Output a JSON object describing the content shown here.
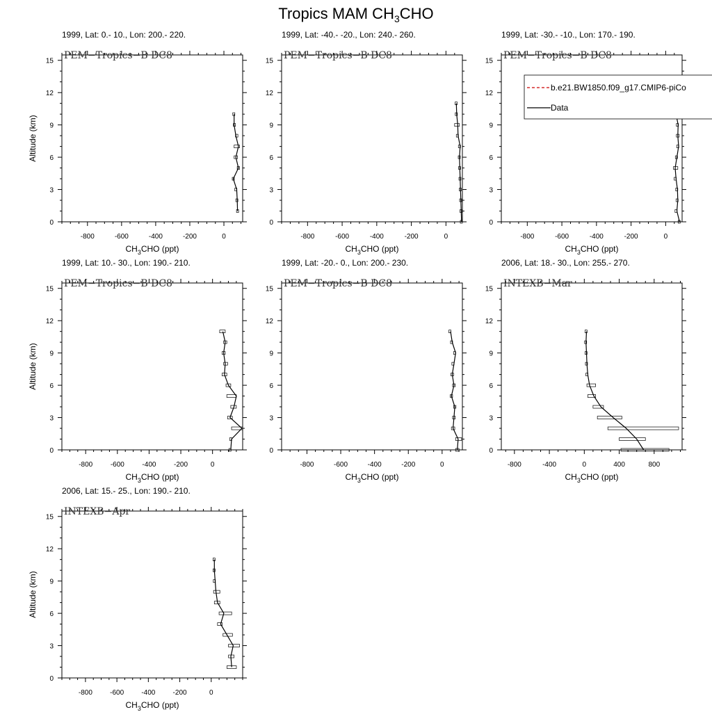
{
  "figure": {
    "title_main": "Tropics MAM CH",
    "title_sub": "3",
    "title_tail": "CHO"
  },
  "axis_labels": {
    "ylabel": "Altitude (km)",
    "xlabel_main": "CH",
    "xlabel_sub": "3",
    "xlabel_tail": "CHO (ppt)"
  },
  "legend": {
    "entries": [
      {
        "label": "b.e21.BW1850.f09_g17.CMIP6-piCo",
        "color": "#cc0000",
        "style": "dashed"
      },
      {
        "label": "Data",
        "color": "#000000",
        "style": "solid"
      }
    ]
  },
  "chart_data": [
    {
      "type": "line",
      "title": "1999, Lat: 0.- 10., Lon: 200.- 220.",
      "campaign": "PEM−Tropics−B DC8",
      "xlim": [
        -950,
        110
      ],
      "ylim": [
        0,
        15.5
      ],
      "xticks": [
        -800,
        -600,
        -400,
        -200,
        0
      ],
      "yticks": [
        0,
        3,
        6,
        9,
        12,
        15
      ],
      "y": [
        1,
        2,
        3,
        4,
        5,
        6,
        7,
        8,
        9,
        10
      ],
      "x": [
        80,
        78,
        75,
        55,
        85,
        70,
        85,
        70,
        60,
        60
      ],
      "x_lo": [
        80,
        76,
        70,
        55,
        78,
        60,
        60,
        68,
        55,
        58
      ],
      "x_hi": [
        82,
        80,
        80,
        57,
        92,
        80,
        92,
        82,
        68,
        62
      ]
    },
    {
      "type": "line",
      "title": "1999, Lat: -40.- -20., Lon: 240.- 260.",
      "campaign": "PEM−Tropics−B DC8",
      "xlim": [
        -950,
        95
      ],
      "ylim": [
        0,
        15.5
      ],
      "xticks": [
        -800,
        -600,
        -400,
        -200,
        0
      ],
      "yticks": [
        0,
        3,
        6,
        9,
        12,
        15
      ],
      "y": [
        0,
        1,
        2,
        3,
        4,
        5,
        6,
        7,
        8,
        9,
        10,
        11
      ],
      "x": [
        90,
        88,
        86,
        84,
        82,
        80,
        78,
        82,
        70,
        68,
        62,
        60
      ],
      "x_lo": [
        89,
        87,
        85,
        83,
        81,
        79,
        77,
        78,
        66,
        50,
        60,
        59
      ],
      "x_hi": [
        91,
        89,
        87,
        85,
        83,
        81,
        79,
        86,
        74,
        78,
        64,
        61
      ]
    },
    {
      "type": "line",
      "title": "1999, Lat: -30.- -10., Lon: 170.- 190.",
      "campaign": "PEM−Tropics−B DC8",
      "xlim": [
        -950,
        95
      ],
      "ylim": [
        0,
        15.5
      ],
      "xticks": [
        -800,
        -600,
        -400,
        -200,
        0
      ],
      "yticks": [
        0,
        3,
        6,
        9,
        12,
        15
      ],
      "y": [
        0,
        1,
        2,
        3,
        4,
        5,
        6,
        7,
        8,
        9,
        10,
        11
      ],
      "x": [
        80,
        65,
        70,
        68,
        60,
        55,
        65,
        75,
        70,
        72,
        60,
        55
      ],
      "x_lo": [
        78,
        60,
        66,
        64,
        55,
        45,
        62,
        70,
        62,
        68,
        55,
        53
      ],
      "x_hi": [
        82,
        70,
        74,
        72,
        65,
        70,
        68,
        80,
        78,
        76,
        65,
        57
      ]
    },
    {
      "type": "line",
      "title": "1999, Lat: 10.- 30., Lon: 190.- 210.",
      "campaign": "PEM−Tropics−B DC8",
      "xlim": [
        -950,
        190
      ],
      "ylim": [
        0,
        15.5
      ],
      "xticks": [
        -800,
        -600,
        -400,
        -200,
        0
      ],
      "yticks": [
        0,
        3,
        6,
        9,
        12,
        15
      ],
      "y": [
        0,
        1,
        2,
        3,
        4,
        5,
        6,
        7,
        8,
        9,
        10,
        11
      ],
      "x": [
        115,
        120,
        185,
        110,
        135,
        150,
        100,
        75,
        80,
        70,
        80,
        65
      ],
      "x_lo": [
        110,
        115,
        120,
        95,
        115,
        90,
        85,
        60,
        70,
        60,
        70,
        45
      ],
      "x_hi": [
        120,
        125,
        190,
        125,
        150,
        150,
        115,
        90,
        95,
        80,
        90,
        80
      ]
    },
    {
      "type": "line",
      "title": "1999, Lat: -20.- 0., Lon: 200.- 230.",
      "campaign": "PEM−Tropics−B DC8",
      "xlim": [
        -950,
        120
      ],
      "ylim": [
        0,
        15.5
      ],
      "xticks": [
        -800,
        -600,
        -400,
        -200,
        0
      ],
      "yticks": [
        0,
        3,
        6,
        9,
        12,
        15
      ],
      "y": [
        0,
        1,
        2,
        3,
        4,
        5,
        6,
        7,
        8,
        9,
        10,
        11
      ],
      "x": [
        90,
        95,
        65,
        70,
        75,
        55,
        70,
        60,
        70,
        80,
        60,
        50
      ],
      "x_lo": [
        80,
        80,
        55,
        62,
        68,
        48,
        62,
        52,
        64,
        74,
        56,
        46
      ],
      "x_hi": [
        100,
        115,
        75,
        78,
        82,
        62,
        78,
        68,
        76,
        86,
        64,
        54
      ]
    },
    {
      "type": "line",
      "title": "2006, Lat: 18.- 30., Lon: 255.- 270.",
      "campaign": "INTEXB−Mar",
      "xlim": [
        -950,
        1120
      ],
      "ylim": [
        0,
        15.5
      ],
      "xticks": [
        -800,
        -400,
        0,
        400,
        800
      ],
      "yticks": [
        0,
        3,
        6,
        9,
        12,
        15
      ],
      "y": [
        0,
        1,
        2,
        3,
        4,
        5,
        6,
        7,
        8,
        9,
        10,
        11
      ],
      "x": [
        680,
        600,
        480,
        330,
        190,
        110,
        60,
        40,
        30,
        25,
        20,
        25
      ],
      "x_lo": [
        420,
        400,
        270,
        150,
        100,
        40,
        30,
        30,
        25,
        20,
        15,
        20
      ],
      "x_hi": [
        970,
        700,
        1080,
        430,
        220,
        130,
        130,
        45,
        45,
        40,
        35,
        35
      ]
    },
    {
      "type": "line",
      "title": "2006, Lat: 15.- 25., Lon: 190.- 210.",
      "campaign": "INTEXB−Apr",
      "xlim": [
        -950,
        200
      ],
      "ylim": [
        0,
        15.5
      ],
      "xticks": [
        -800,
        -600,
        -400,
        -200,
        0
      ],
      "yticks": [
        0,
        3,
        6,
        9,
        12,
        15
      ],
      "y": [
        1,
        2,
        3,
        4,
        5,
        6,
        7,
        8,
        9,
        10,
        11
      ],
      "x": [
        130,
        125,
        140,
        100,
        60,
        80,
        40,
        30,
        25,
        20,
        20
      ],
      "x_lo": [
        100,
        110,
        110,
        75,
        40,
        50,
        20,
        15,
        20,
        18,
        18
      ],
      "x_hi": [
        160,
        145,
        180,
        135,
        70,
        130,
        55,
        55,
        30,
        22,
        22
      ]
    }
  ]
}
